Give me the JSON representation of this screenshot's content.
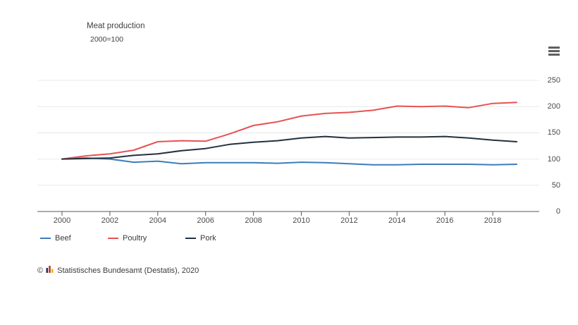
{
  "header": {
    "title": "Meat production",
    "subtitle": "2000=100"
  },
  "menu": {
    "icon": "hamburger-menu-icon"
  },
  "chart_data": {
    "type": "line",
    "x": [
      2000,
      2001,
      2002,
      2003,
      2004,
      2005,
      2006,
      2007,
      2008,
      2009,
      2010,
      2011,
      2012,
      2013,
      2014,
      2015,
      2016,
      2017,
      2018,
      2019
    ],
    "series": [
      {
        "name": "Beef",
        "color": "#3d7cb8",
        "values": [
          100,
          102,
          100,
          94,
          96,
          91,
          93,
          93,
          93,
          92,
          94,
          93,
          91,
          89,
          89,
          90,
          90,
          90,
          89,
          90
        ]
      },
      {
        "name": "Poultry",
        "color": "#e75252",
        "values": [
          100,
          106,
          110,
          117,
          133,
          135,
          134,
          148,
          164,
          171,
          182,
          187,
          189,
          193,
          201,
          200,
          201,
          198,
          206,
          208
        ]
      },
      {
        "name": "Pork",
        "color": "#213140",
        "values": [
          100,
          101,
          102,
          107,
          110,
          116,
          120,
          128,
          132,
          135,
          140,
          143,
          140,
          141,
          142,
          142,
          143,
          140,
          136,
          133
        ]
      }
    ],
    "title": "Meat production",
    "subtitle": "2000=100",
    "xlabel": "",
    "ylabel": "",
    "x_tick_labels": [
      "2000",
      "2002",
      "2004",
      "2006",
      "2008",
      "2010",
      "2012",
      "2014",
      "2016",
      "2018"
    ],
    "x_tick_years": [
      2000,
      2002,
      2004,
      2006,
      2008,
      2010,
      2012,
      2014,
      2016,
      2018
    ],
    "y_ticks": [
      0,
      50,
      100,
      150,
      200,
      250
    ],
    "ylim": [
      0,
      250
    ],
    "grid": true,
    "legend_position": "bottom-left",
    "y_axis_side": "right"
  },
  "colors": {
    "gridline": "#e8e8e8",
    "axis": "#5a5a5a",
    "text": "#4a4a4a",
    "menu_icon": "#606060"
  },
  "credits": {
    "copyright": "©",
    "logo_icon": "destatis-logo-icon",
    "text": "Statistisches Bundesamt (Destatis), 2020"
  }
}
